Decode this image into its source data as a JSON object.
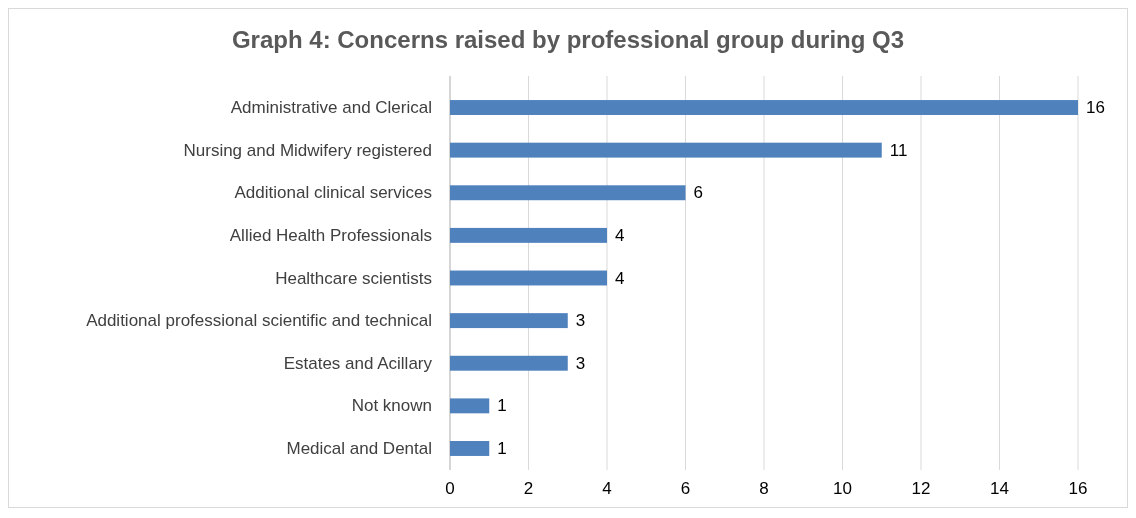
{
  "chart_data": {
    "type": "bar",
    "orientation": "horizontal",
    "title": "Graph 4: Concerns raised by professional group during Q3",
    "categories": [
      "Administrative and Clerical",
      "Nursing and Midwifery registered",
      "Additional clinical services",
      "Allied Health Professionals",
      "Healthcare scientists",
      "Additional professional scientific and technical",
      "Estates and Acillary",
      "Not known",
      "Medical and Dental"
    ],
    "values": [
      16,
      11,
      6,
      4,
      4,
      3,
      3,
      1,
      1
    ],
    "color": "#4f81bd",
    "xlim": [
      0,
      16
    ],
    "xticks": [
      0,
      2,
      4,
      6,
      8,
      10,
      12,
      14,
      16
    ],
    "grid": "x",
    "data_labels": true
  }
}
